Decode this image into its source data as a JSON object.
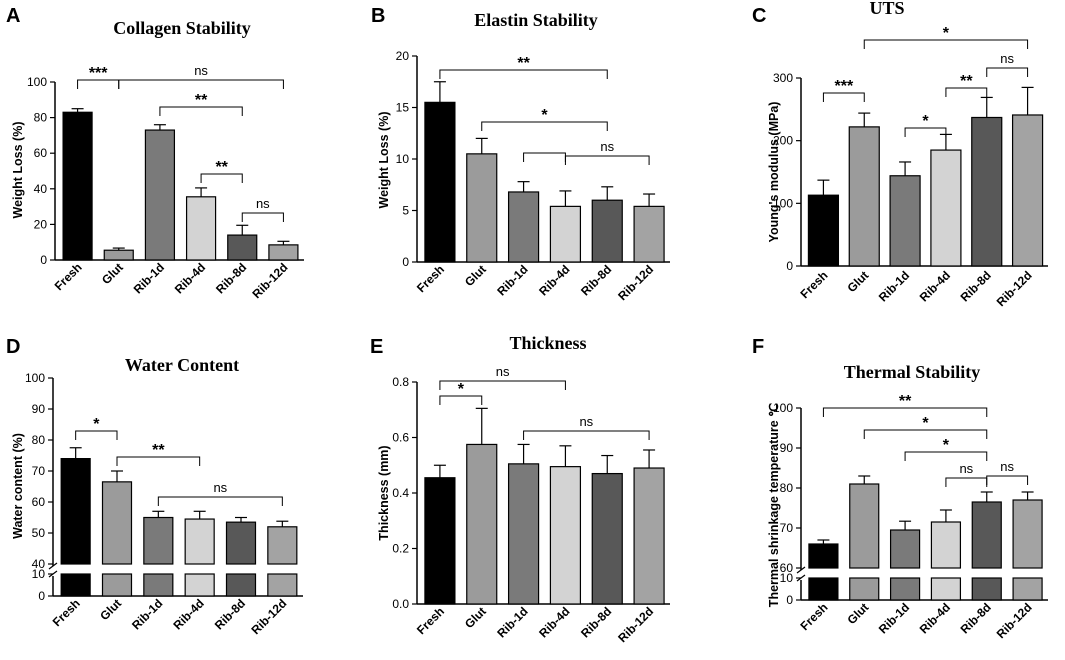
{
  "figure": {
    "categories": [
      "Fresh",
      "Glut",
      "Rib-1d",
      "Rib-4d",
      "Rib-8d",
      "Rib-12d"
    ],
    "bar_colors": [
      "#000000",
      "#9b9b9b",
      "#7a7a7a",
      "#d3d3d3",
      "#585858",
      "#a3a3a3"
    ]
  },
  "chart_data": [
    {
      "panel": "A",
      "type": "bar",
      "title": "Collagen Stability",
      "ylabel": "Weight Loss (%)",
      "ylim": [
        0,
        100
      ],
      "yticks": [
        0,
        20,
        40,
        60,
        80,
        100
      ],
      "categories": [
        "Fresh",
        "Glut",
        "Rib-1d",
        "Rib-4d",
        "Rib-8d",
        "Rib-12d"
      ],
      "values": [
        83,
        5.5,
        73,
        35.5,
        14,
        8.5
      ],
      "errors": [
        2,
        1.2,
        3,
        5,
        5.5,
        2
      ],
      "comparisons": [
        {
          "from": 0,
          "to": 1,
          "label": "***"
        },
        {
          "from": 1,
          "to": 5,
          "label": "ns"
        },
        {
          "from": 2,
          "to": 4,
          "label": "**"
        },
        {
          "from": 3,
          "to": 4,
          "label": "**"
        },
        {
          "from": 4,
          "to": 5,
          "label": "ns"
        }
      ]
    },
    {
      "panel": "B",
      "type": "bar",
      "title": "Elastin Stability",
      "ylabel": "Weight Loss  (%)",
      "ylim": [
        0,
        20
      ],
      "yticks": [
        0,
        5,
        10,
        15,
        20
      ],
      "categories": [
        "Fresh",
        "Glut",
        "Rib-1d",
        "Rib-4d",
        "Rib-8d",
        "Rib-12d"
      ],
      "values": [
        15.5,
        10.5,
        6.8,
        5.4,
        6,
        5.4
      ],
      "errors": [
        2,
        1.5,
        1,
        1.5,
        1.3,
        1.2
      ],
      "comparisons": [
        {
          "from": 0,
          "to": 4,
          "label": "**"
        },
        {
          "from": 1,
          "to": 4,
          "label": "*"
        },
        {
          "from": 2,
          "to": 3,
          "label": ""
        },
        {
          "from": 3,
          "to": 5,
          "label": "ns"
        }
      ]
    },
    {
      "panel": "C",
      "type": "bar",
      "title": "UTS",
      "ylabel": "Young's modulus (MPa)",
      "ylim": [
        0,
        300
      ],
      "yticks": [
        0,
        100,
        200,
        300
      ],
      "categories": [
        "Fresh",
        "Glut",
        "Rib-1d",
        "Rib-4d",
        "Rib-8d",
        "Rib-12d"
      ],
      "values": [
        113,
        222,
        144,
        185,
        237,
        241
      ],
      "errors": [
        24,
        22,
        22,
        25,
        32,
        44
      ],
      "comparisons": [
        {
          "from": 1,
          "to": 5,
          "label": "*"
        },
        {
          "from": 0,
          "to": 1,
          "label": "***"
        },
        {
          "from": 2,
          "to": 3,
          "label": "*"
        },
        {
          "from": 3,
          "to": 4,
          "label": "**"
        },
        {
          "from": 4,
          "to": 5,
          "label": "ns"
        }
      ]
    },
    {
      "panel": "D",
      "type": "bar",
      "title": "Water Content",
      "ylabel": "Water content (%)",
      "ylim": [
        40,
        100
      ],
      "axis_break": true,
      "yticks": [
        0,
        10,
        40,
        50,
        60,
        70,
        80,
        90,
        100
      ],
      "categories": [
        "Fresh",
        "Glut",
        "Rib-1d",
        "Rib-4d",
        "Rib-8d",
        "Rib-12d"
      ],
      "values": [
        74,
        66.5,
        55,
        54.5,
        53.5,
        52
      ],
      "errors": [
        3.5,
        3.5,
        2,
        2.5,
        1.5,
        1.8
      ],
      "comparisons": [
        {
          "from": 0,
          "to": 1,
          "label": "*"
        },
        {
          "from": 1,
          "to": 3,
          "label": "**"
        },
        {
          "from": 2,
          "to": 5,
          "label": "ns"
        }
      ]
    },
    {
      "panel": "E",
      "type": "bar",
      "title": "Thickness",
      "ylabel": "Thickness (mm)",
      "ylim": [
        0,
        0.8
      ],
      "yticks": [
        0.0,
        0.2,
        0.4,
        0.6,
        0.8
      ],
      "categories": [
        "Fresh",
        "Glut",
        "Rib-1d",
        "Rib-4d",
        "Rib-8d",
        "Rib-12d"
      ],
      "values": [
        0.455,
        0.575,
        0.505,
        0.495,
        0.47,
        0.49
      ],
      "errors": [
        0.045,
        0.13,
        0.07,
        0.075,
        0.065,
        0.065
      ],
      "comparisons": [
        {
          "from": 0,
          "to": 3,
          "label": "ns"
        },
        {
          "from": 0,
          "to": 1,
          "label": "*"
        },
        {
          "from": 2,
          "to": 5,
          "label": "ns"
        }
      ]
    },
    {
      "panel": "F",
      "type": "bar",
      "title": "Thermal Stability",
      "ylabel": "Thermal shrinkage temperature ℃",
      "ylim": [
        60,
        100
      ],
      "axis_break": true,
      "yticks": [
        0,
        10,
        60,
        70,
        80,
        90,
        100
      ],
      "categories": [
        "Fresh",
        "Glut",
        "Rib-1d",
        "Rib-4d",
        "Rib-8d",
        "Rib-12d"
      ],
      "values": [
        66,
        81,
        69.5,
        71.5,
        76.5,
        77
      ],
      "errors": [
        1,
        2,
        2.2,
        3,
        2.5,
        2
      ],
      "comparisons": [
        {
          "from": 0,
          "to": 4,
          "label": "**"
        },
        {
          "from": 1,
          "to": 4,
          "label": "*"
        },
        {
          "from": 2,
          "to": 4,
          "label": "*"
        },
        {
          "from": 3,
          "to": 4,
          "label": "ns"
        },
        {
          "from": 4,
          "to": 5,
          "label": "ns"
        }
      ]
    }
  ]
}
